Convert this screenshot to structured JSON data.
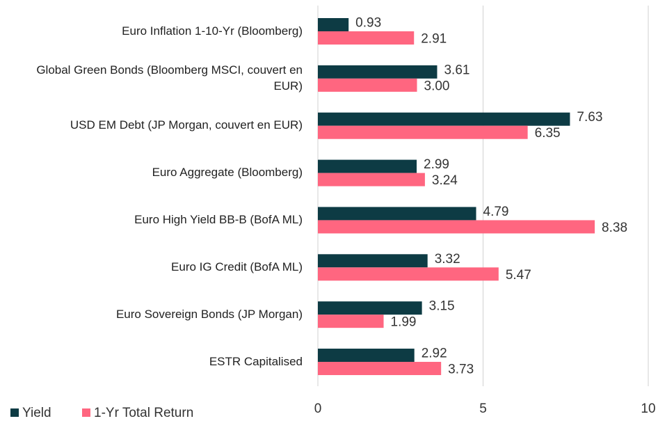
{
  "chart_data": {
    "type": "hbar",
    "categories": [
      "Euro Inflation 1-10-Yr (Bloomberg)",
      "Global Green Bonds (Bloomberg MSCI, couvert en EUR)",
      "USD EM Debt (JP Morgan, couvert en EUR)",
      "Euro Aggregate (Bloomberg)",
      "Euro High Yield BB-B (BofA ML)",
      "Euro IG Credit (BofA ML)",
      "Euro Sovereign Bonds (JP Morgan)",
      "ESTR Capitalised"
    ],
    "series": [
      {
        "name": "Yield",
        "color": "#0d3b44",
        "values": [
          0.93,
          3.61,
          7.63,
          2.99,
          4.79,
          3.32,
          3.15,
          2.92
        ],
        "value_labels": [
          "0.93",
          "3.61",
          "7.63",
          "2.99",
          "4.79",
          "3.32",
          "3.15",
          "2.92"
        ]
      },
      {
        "name": "1-Yr Total Return",
        "color": "#ff6680",
        "values": [
          2.91,
          3.0,
          6.35,
          3.24,
          8.38,
          5.47,
          1.99,
          3.73
        ],
        "value_labels": [
          "2.91",
          "3.00",
          "6.35",
          "3.24",
          "8.38",
          "5.47",
          "1.99",
          "3.73"
        ]
      }
    ],
    "xlim": [
      0,
      10
    ],
    "xticks": [
      0,
      5,
      10
    ],
    "grid": true,
    "legend": "bottom-left"
  }
}
